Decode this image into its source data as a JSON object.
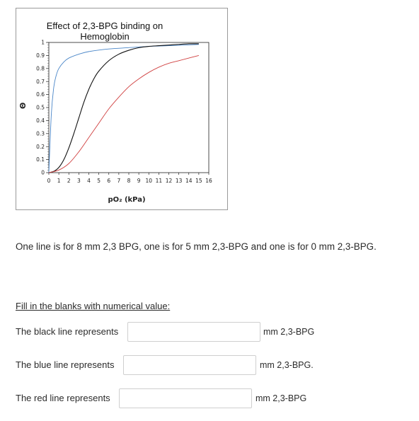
{
  "chart_data": {
    "type": "line",
    "title_line1": "Effect of 2,3-BPG binding on",
    "title_line2": "Hemoglobin",
    "xlabel": "pO₂  (kPa)",
    "ylabel": "Θ",
    "xlim": [
      0,
      16
    ],
    "ylim": [
      0,
      1
    ],
    "xticks": [
      "0",
      "1",
      "2",
      "3",
      "4",
      "5",
      "6",
      "7",
      "8",
      "9",
      "10",
      "11",
      "12",
      "13",
      "14",
      "15",
      "16"
    ],
    "yticks": [
      "0",
      "0.1",
      "0.2",
      "0.3",
      "0.4",
      "0.5",
      "0.6",
      "0.7",
      "0.8",
      "0.9",
      "1"
    ],
    "grid": false,
    "legend": "none",
    "series": [
      {
        "color": "#4a86c8",
        "x": [
          0,
          0.25,
          0.5,
          0.75,
          1,
          1.5,
          2,
          3,
          4,
          6,
          8,
          10,
          12,
          15
        ],
        "y": [
          0,
          0.45,
          0.66,
          0.75,
          0.8,
          0.85,
          0.88,
          0.91,
          0.93,
          0.95,
          0.96,
          0.97,
          0.975,
          0.985
        ]
      },
      {
        "color": "#111111",
        "x": [
          0,
          0.5,
          1,
          1.5,
          2,
          2.5,
          3,
          3.5,
          4,
          4.5,
          5,
          6,
          7,
          8,
          9,
          10,
          11,
          12,
          13,
          14,
          15
        ],
        "y": [
          0,
          0.01,
          0.04,
          0.1,
          0.19,
          0.3,
          0.42,
          0.54,
          0.64,
          0.72,
          0.78,
          0.86,
          0.91,
          0.94,
          0.96,
          0.97,
          0.975,
          0.98,
          0.985,
          0.99,
          0.99
        ]
      },
      {
        "color": "#d04040",
        "x": [
          0,
          1,
          2,
          3,
          4,
          5,
          6,
          7,
          8,
          9,
          10,
          11,
          12,
          13,
          14,
          15
        ],
        "y": [
          0,
          0.02,
          0.07,
          0.16,
          0.27,
          0.38,
          0.49,
          0.58,
          0.66,
          0.72,
          0.77,
          0.81,
          0.84,
          0.86,
          0.88,
          0.9
        ]
      }
    ]
  },
  "description": "One line is for 8 mm 2,3 BPG, one is for 5 mm 2,3-BPG and one is for 0 mm 2,3-BPG.",
  "instruction": "Fill in the blanks with numerical value:",
  "questions": [
    {
      "label": "The black line represents",
      "value": "",
      "unit": "mm 2,3-BPG"
    },
    {
      "label": "The blue line represents",
      "value": "",
      "unit": "mm 2,3-BPG."
    },
    {
      "label": "The red line represents",
      "value": "",
      "unit": "mm 2,3-BPG"
    }
  ]
}
